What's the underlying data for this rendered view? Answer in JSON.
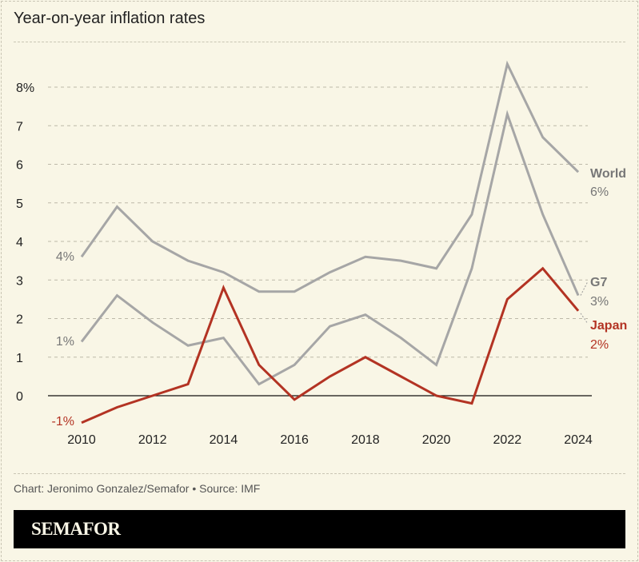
{
  "title": "Year-on-year inflation rates",
  "credit": "Chart: Jeronimo Gonzalez/Semafor • Source: IMF",
  "logo": "SEMAFOR",
  "chart_data": {
    "type": "line",
    "title": "Year-on-year inflation rates",
    "x": [
      2010,
      2011,
      2012,
      2013,
      2014,
      2015,
      2016,
      2017,
      2018,
      2019,
      2020,
      2021,
      2022,
      2023,
      2024
    ],
    "xticks": [
      "2010",
      "2012",
      "2014",
      "2016",
      "2018",
      "2020",
      "2022",
      "2024"
    ],
    "yticks": [
      "0",
      "1",
      "2",
      "3",
      "4",
      "5",
      "6",
      "7",
      "8%"
    ],
    "ylim": [
      -1,
      8.8
    ],
    "grid": true,
    "series": [
      {
        "name": "World",
        "color": "#a6a6a6",
        "label_color": "#777777",
        "end_label": "6%",
        "start_label": "4%",
        "values": [
          3.6,
          4.9,
          4.0,
          3.5,
          3.2,
          2.7,
          2.7,
          3.2,
          3.6,
          3.5,
          3.3,
          4.7,
          8.6,
          6.7,
          5.8
        ]
      },
      {
        "name": "G7",
        "color": "#a6a6a6",
        "label_color": "#777777",
        "end_label": "3%",
        "start_label": "1%",
        "values": [
          1.4,
          2.6,
          1.9,
          1.3,
          1.5,
          0.3,
          0.8,
          1.8,
          2.1,
          1.5,
          0.8,
          3.3,
          7.3,
          4.7,
          2.6
        ]
      },
      {
        "name": "Japan",
        "color": "#b33323",
        "label_color": "#b33323",
        "end_label": "2%",
        "start_label": "-1%",
        "values": [
          -0.7,
          -0.3,
          0.0,
          0.3,
          2.8,
          0.8,
          -0.1,
          0.5,
          1.0,
          0.5,
          0.0,
          -0.2,
          2.5,
          3.3,
          2.2
        ]
      }
    ]
  }
}
